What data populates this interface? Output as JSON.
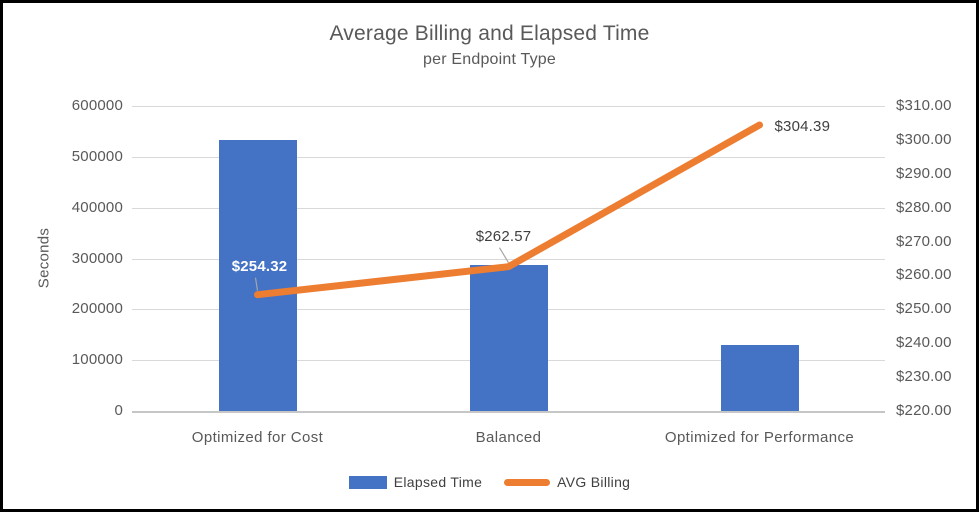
{
  "chart_data": {
    "type": "combo",
    "title": "Average Billing and Elapsed Time",
    "subtitle": "per Endpoint Type",
    "categories": [
      "Optimized for Cost",
      "Balanced",
      "Optimized for Performance"
    ],
    "series": [
      {
        "name": "Elapsed Time",
        "type": "bar",
        "axis": "left",
        "color": "#4472C4",
        "values": [
          533000,
          287000,
          130000
        ]
      },
      {
        "name": "AVG Billing",
        "type": "line",
        "axis": "right",
        "color": "#ED7D31",
        "values": [
          254.32,
          262.57,
          304.39
        ],
        "data_labels": [
          "$254.32",
          "$262.57",
          "$304.39"
        ]
      }
    ],
    "left_axis": {
      "label": "Seconds",
      "min": 0,
      "max": 600000,
      "step": 100000,
      "ticks": [
        "600000",
        "500000",
        "400000",
        "300000",
        "200000",
        "100000",
        "0"
      ]
    },
    "right_axis": {
      "min": 220,
      "max": 310,
      "step": 10,
      "ticks": [
        "$310.00",
        "$300.00",
        "$290.00",
        "$280.00",
        "$270.00",
        "$260.00",
        "$250.00",
        "$240.00",
        "$230.00",
        "$220.00"
      ]
    },
    "grid": true,
    "legend_position": "bottom",
    "colors": {
      "bar": "#4472C4",
      "line": "#ED7D31",
      "gridline": "#D9D9D9",
      "axis_text": "#595959",
      "data_label_text": "#404040",
      "leader_line": "#A6A6A6",
      "frame_border": "#000000",
      "background": "#FFFFFF"
    }
  }
}
